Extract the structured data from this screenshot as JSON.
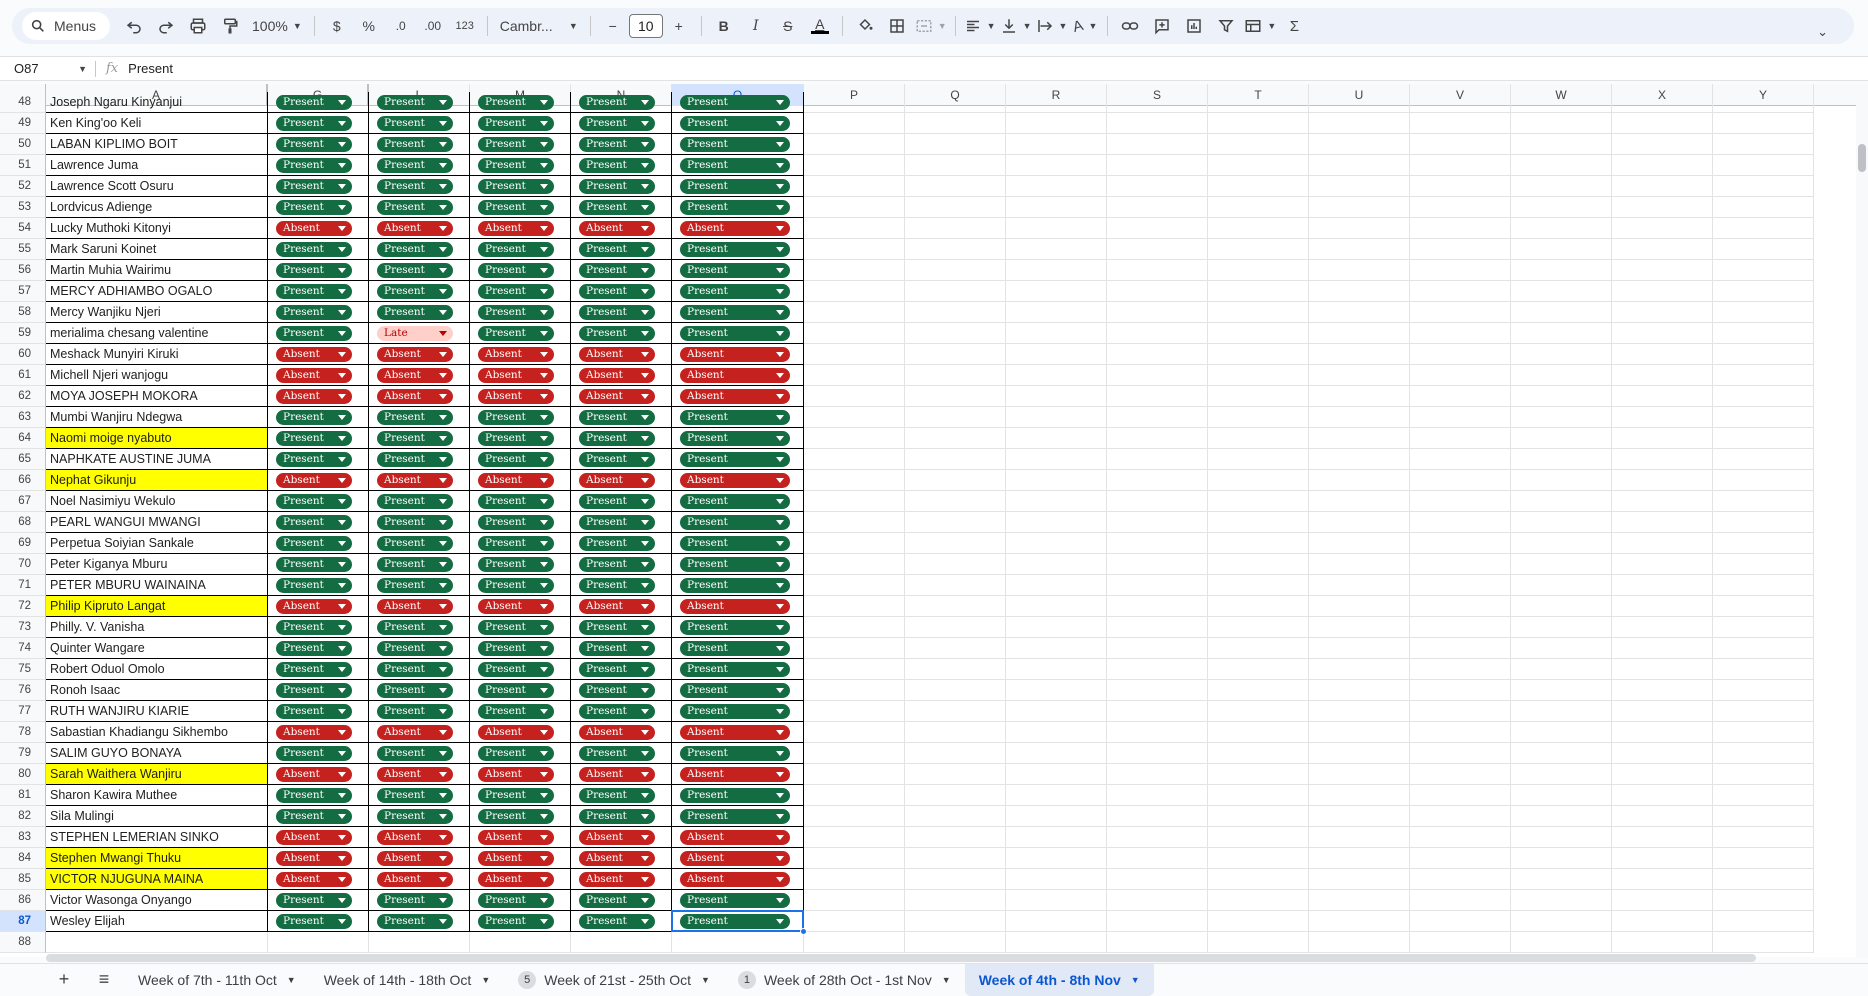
{
  "toolbar": {
    "menus_label": "Menus",
    "zoom": "100%",
    "currency_symbol": "$",
    "percent_symbol": "%",
    "decrease_decimal": ".0",
    "increase_decimal": ".00",
    "format_123": "123",
    "font": "Cambr...",
    "font_size": "10",
    "minus": "−",
    "plus": "+",
    "bold": "B",
    "italic": "I",
    "strike": "S",
    "text_color": "A",
    "function_symbol": "Σ",
    "collapse": "⌄"
  },
  "formula_bar": {
    "cell_ref": "O87",
    "fx": "fx",
    "value": "Present"
  },
  "columns": {
    "A": "A",
    "G": "G",
    "L": "L",
    "M": "M",
    "N": "N",
    "O": "O",
    "P": "P",
    "Q": "Q",
    "R": "R",
    "S": "S",
    "T": "T",
    "U": "U",
    "V": "V",
    "W": "W",
    "X": "X",
    "Y": "Y"
  },
  "rows": [
    {
      "n": "48",
      "name": "Joseph Ngaru Kinyanjui",
      "hl": false,
      "v": [
        "Present",
        "Present",
        "Present",
        "Present",
        "Present"
      ]
    },
    {
      "n": "49",
      "name": "Ken King'oo Keli",
      "hl": false,
      "v": [
        "Present",
        "Present",
        "Present",
        "Present",
        "Present"
      ]
    },
    {
      "n": "50",
      "name": "LABAN KIPLIMO BOIT",
      "hl": false,
      "v": [
        "Present",
        "Present",
        "Present",
        "Present",
        "Present"
      ]
    },
    {
      "n": "51",
      "name": "Lawrence Juma",
      "hl": false,
      "v": [
        "Present",
        "Present",
        "Present",
        "Present",
        "Present"
      ]
    },
    {
      "n": "52",
      "name": "Lawrence Scott Osuru",
      "hl": false,
      "v": [
        "Present",
        "Present",
        "Present",
        "Present",
        "Present"
      ]
    },
    {
      "n": "53",
      "name": "Lordvicus Adienge",
      "hl": false,
      "v": [
        "Present",
        "Present",
        "Present",
        "Present",
        "Present"
      ]
    },
    {
      "n": "54",
      "name": "Lucky Muthoki Kitonyi",
      "hl": false,
      "v": [
        "Absent",
        "Absent",
        "Absent",
        "Absent",
        "Absent"
      ]
    },
    {
      "n": "55",
      "name": "Mark Saruni Koinet",
      "hl": false,
      "v": [
        "Present",
        "Present",
        "Present",
        "Present",
        "Present"
      ]
    },
    {
      "n": "56",
      "name": "Martin Muhia Wairimu",
      "hl": false,
      "v": [
        "Present",
        "Present",
        "Present",
        "Present",
        "Present"
      ]
    },
    {
      "n": "57",
      "name": "MERCY ADHIAMBO OGALO",
      "hl": false,
      "v": [
        "Present",
        "Present",
        "Present",
        "Present",
        "Present"
      ]
    },
    {
      "n": "58",
      "name": "Mercy Wanjiku Njeri",
      "hl": false,
      "v": [
        "Present",
        "Present",
        "Present",
        "Present",
        "Present"
      ]
    },
    {
      "n": "59",
      "name": "merialima chesang valentine",
      "hl": false,
      "v": [
        "Present",
        "Late",
        "Present",
        "Present",
        "Present"
      ]
    },
    {
      "n": "60",
      "name": "Meshack Munyiri Kiruki",
      "hl": false,
      "v": [
        "Absent",
        "Absent",
        "Absent",
        "Absent",
        "Absent"
      ]
    },
    {
      "n": "61",
      "name": "Michell Njeri wanjogu",
      "hl": false,
      "v": [
        "Absent",
        "Absent",
        "Absent",
        "Absent",
        "Absent"
      ]
    },
    {
      "n": "62",
      "name": "MOYA JOSEPH MOKORA",
      "hl": false,
      "v": [
        "Absent",
        "Absent",
        "Absent",
        "Absent",
        "Absent"
      ]
    },
    {
      "n": "63",
      "name": "Mumbi Wanjiru Ndegwa",
      "hl": false,
      "v": [
        "Present",
        "Present",
        "Present",
        "Present",
        "Present"
      ]
    },
    {
      "n": "64",
      "name": "Naomi moige nyabuto",
      "hl": true,
      "v": [
        "Present",
        "Present",
        "Present",
        "Present",
        "Present"
      ]
    },
    {
      "n": "65",
      "name": "NAPHKATE AUSTINE JUMA",
      "hl": false,
      "v": [
        "Present",
        "Present",
        "Present",
        "Present",
        "Present"
      ]
    },
    {
      "n": "66",
      "name": "Nephat Gikunju",
      "hl": true,
      "v": [
        "Absent",
        "Absent",
        "Absent",
        "Absent",
        "Absent"
      ]
    },
    {
      "n": "67",
      "name": "Noel Nasimiyu Wekulo",
      "hl": false,
      "v": [
        "Present",
        "Present",
        "Present",
        "Present",
        "Present"
      ]
    },
    {
      "n": "68",
      "name": "PEARL WANGUI MWANGI",
      "hl": false,
      "v": [
        "Present",
        "Present",
        "Present",
        "Present",
        "Present"
      ]
    },
    {
      "n": "69",
      "name": "Perpetua Soiyian Sankale",
      "hl": false,
      "v": [
        "Present",
        "Present",
        "Present",
        "Present",
        "Present"
      ]
    },
    {
      "n": "70",
      "name": "Peter Kiganya Mburu",
      "hl": false,
      "v": [
        "Present",
        "Present",
        "Present",
        "Present",
        "Present"
      ]
    },
    {
      "n": "71",
      "name": "PETER MBURU WAINAINA",
      "hl": false,
      "v": [
        "Present",
        "Present",
        "Present",
        "Present",
        "Present"
      ]
    },
    {
      "n": "72",
      "name": "Philip Kipruto Langat",
      "hl": true,
      "v": [
        "Absent",
        "Absent",
        "Absent",
        "Absent",
        "Absent"
      ]
    },
    {
      "n": "73",
      "name": "Philly. V. Vanisha",
      "hl": false,
      "v": [
        "Present",
        "Present",
        "Present",
        "Present",
        "Present"
      ]
    },
    {
      "n": "74",
      "name": "Quinter Wangare",
      "hl": false,
      "v": [
        "Present",
        "Present",
        "Present",
        "Present",
        "Present"
      ]
    },
    {
      "n": "75",
      "name": "Robert Oduol Omolo",
      "hl": false,
      "v": [
        "Present",
        "Present",
        "Present",
        "Present",
        "Present"
      ]
    },
    {
      "n": "76",
      "name": "Ronoh Isaac",
      "hl": false,
      "v": [
        "Present",
        "Present",
        "Present",
        "Present",
        "Present"
      ]
    },
    {
      "n": "77",
      "name": "RUTH WANJIRU KIARIE",
      "hl": false,
      "v": [
        "Present",
        "Present",
        "Present",
        "Present",
        "Present"
      ]
    },
    {
      "n": "78",
      "name": "Sabastian Khadiangu Sikhembo",
      "hl": false,
      "v": [
        "Absent",
        "Absent",
        "Absent",
        "Absent",
        "Absent"
      ]
    },
    {
      "n": "79",
      "name": "SALIM GUYO BONAYA",
      "hl": false,
      "v": [
        "Present",
        "Present",
        "Present",
        "Present",
        "Present"
      ]
    },
    {
      "n": "80",
      "name": "Sarah Waithera Wanjiru",
      "hl": true,
      "v": [
        "Absent",
        "Absent",
        "Absent",
        "Absent",
        "Absent"
      ]
    },
    {
      "n": "81",
      "name": "Sharon Kawira Muthee",
      "hl": false,
      "v": [
        "Present",
        "Present",
        "Present",
        "Present",
        "Present"
      ]
    },
    {
      "n": "82",
      "name": "Sila Mulingi",
      "hl": false,
      "v": [
        "Present",
        "Present",
        "Present",
        "Present",
        "Present"
      ]
    },
    {
      "n": "83",
      "name": "STEPHEN LEMERIAN SINKO",
      "hl": false,
      "v": [
        "Absent",
        "Absent",
        "Absent",
        "Absent",
        "Absent"
      ]
    },
    {
      "n": "84",
      "name": "Stephen Mwangi Thuku",
      "hl": true,
      "v": [
        "Absent",
        "Absent",
        "Absent",
        "Absent",
        "Absent"
      ]
    },
    {
      "n": "85",
      "name": "VICTOR NJUGUNA MAINA",
      "hl": true,
      "v": [
        "Absent",
        "Absent",
        "Absent",
        "Absent",
        "Absent"
      ]
    },
    {
      "n": "86",
      "name": "Victor Wasonga Onyango",
      "hl": false,
      "v": [
        "Present",
        "Present",
        "Present",
        "Present",
        "Present"
      ]
    },
    {
      "n": "87",
      "name": "Wesley Elijah",
      "hl": false,
      "v": [
        "Present",
        "Present",
        "Present",
        "Present",
        "Present"
      ]
    },
    {
      "n": "88",
      "name": "",
      "hl": false,
      "v": []
    }
  ],
  "tabs": [
    {
      "label": "Week of 7th - 11th Oct",
      "count": "",
      "active": false
    },
    {
      "label": "Week of 14th - 18th Oct",
      "count": "",
      "active": false
    },
    {
      "label": "Week of 21st - 25th Oct",
      "count": "5",
      "active": false
    },
    {
      "label": "Week of 28th Oct - 1st Nov",
      "count": "1",
      "active": false
    },
    {
      "label": "Week of 4th - 8th Nov",
      "count": "",
      "active": true
    }
  ],
  "colors": {
    "present": "#146c43",
    "absent": "#c5221f",
    "late_bg": "#ffcfc9",
    "highlight": "#ffff00",
    "selection": "#1a73e8"
  }
}
